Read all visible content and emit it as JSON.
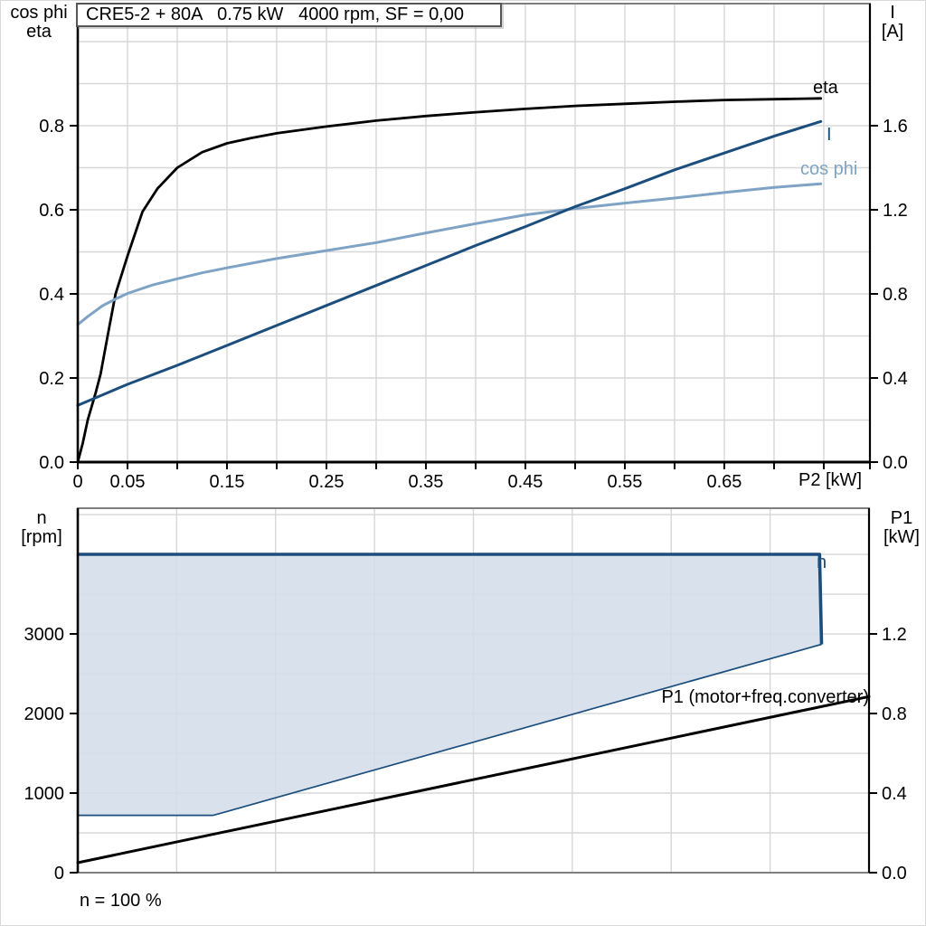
{
  "colors": {
    "curve_black": "#000000",
    "curve_dark_blue": "#1b4e7c",
    "curve_light_blue": "#7fa3c5",
    "area_fill": "#d3dde9",
    "grid": "#d7d7d7",
    "frame_grey": "#808080",
    "text": "#000000"
  },
  "top_chart": {
    "title": "CRE5-2 + 80A   0.75 kW   4000 rpm, SF = 0,00",
    "left_axis_line1": "cos phi",
    "left_axis_line2": "eta",
    "right_axis_line1": "I",
    "right_axis_line2": "[A]",
    "x_axis_label": "P2 [kW]",
    "curve_labels": {
      "eta": "eta",
      "current": "I",
      "cos_phi": "cos phi"
    }
  },
  "bottom_chart": {
    "left_axis_line1": "n",
    "left_axis_line2": "[rpm]",
    "right_axis_line1": "P1",
    "right_axis_line2": "[kW]",
    "curve_labels": {
      "n": "n",
      "p1": "P1 (motor+freq.converter)"
    },
    "footnote": "n = 100 %"
  },
  "chart_data": [
    {
      "type": "line",
      "title": "CRE5-2 + 80A   0.75 kW   4000 rpm, SF = 0,00",
      "x_axis": {
        "label": "P2 [kW]",
        "range": [
          0,
          0.7964
        ],
        "grid_step": 0.05,
        "minor_tick_step": 0.05,
        "minor_tick_max": 0.75,
        "ticks": [
          [
            0,
            "0"
          ],
          [
            0.05,
            "0.05"
          ],
          [
            0.15,
            "0.15"
          ],
          [
            0.25,
            "0.25"
          ],
          [
            0.35,
            "0.35"
          ],
          [
            0.45,
            "0.45"
          ],
          [
            0.55,
            "0.55"
          ],
          [
            0.65,
            "0.65"
          ]
        ]
      },
      "left_axis": {
        "label": "cos phi / eta",
        "range": [
          0,
          1.0903
        ],
        "grid_step": 0.1,
        "ticks": [
          [
            0,
            "0.0"
          ],
          [
            0.2,
            "0.2"
          ],
          [
            0.4,
            "0.4"
          ],
          [
            0.6,
            "0.6"
          ],
          [
            0.8,
            "0.8"
          ]
        ]
      },
      "right_axis": {
        "label": "I [A]",
        "range": [
          0,
          2.1806
        ],
        "ticks": [
          [
            0,
            "0.0"
          ],
          [
            0.4,
            "0.4"
          ],
          [
            0.8,
            "0.8"
          ],
          [
            1.2,
            "1.2"
          ],
          [
            1.6,
            "1.6"
          ]
        ]
      },
      "series": [
        {
          "name": "eta",
          "axis": "left",
          "color": "#000000",
          "width": 2.8,
          "points": [
            [
              0,
              0
            ],
            [
              0.005,
              0.045
            ],
            [
              0.01,
              0.1
            ],
            [
              0.018,
              0.165
            ],
            [
              0.023,
              0.21
            ],
            [
              0.03,
              0.3
            ],
            [
              0.038,
              0.4
            ],
            [
              0.05,
              0.49
            ],
            [
              0.065,
              0.595
            ],
            [
              0.08,
              0.65
            ],
            [
              0.1,
              0.7
            ],
            [
              0.125,
              0.737
            ],
            [
              0.15,
              0.758
            ],
            [
              0.175,
              0.771
            ],
            [
              0.2,
              0.782
            ],
            [
              0.25,
              0.798
            ],
            [
              0.3,
              0.812
            ],
            [
              0.35,
              0.823
            ],
            [
              0.4,
              0.832
            ],
            [
              0.45,
              0.84
            ],
            [
              0.5,
              0.847
            ],
            [
              0.55,
              0.852
            ],
            [
              0.6,
              0.857
            ],
            [
              0.65,
              0.861
            ],
            [
              0.7,
              0.863
            ],
            [
              0.747,
              0.865
            ]
          ]
        },
        {
          "name": "cos-phi",
          "axis": "left",
          "color": "#7fa3c5",
          "width": 3,
          "points": [
            [
              0,
              0.327
            ],
            [
              0.01,
              0.346
            ],
            [
              0.025,
              0.372
            ],
            [
              0.04,
              0.39
            ],
            [
              0.05,
              0.401
            ],
            [
              0.075,
              0.421
            ],
            [
              0.1,
              0.436
            ],
            [
              0.125,
              0.45
            ],
            [
              0.15,
              0.462
            ],
            [
              0.2,
              0.484
            ],
            [
              0.25,
              0.503
            ],
            [
              0.3,
              0.522
            ],
            [
              0.35,
              0.545
            ],
            [
              0.4,
              0.567
            ],
            [
              0.45,
              0.588
            ],
            [
              0.5,
              0.603
            ],
            [
              0.55,
              0.616
            ],
            [
              0.6,
              0.628
            ],
            [
              0.65,
              0.641
            ],
            [
              0.7,
              0.653
            ],
            [
              0.747,
              0.662
            ]
          ]
        },
        {
          "name": "current-I",
          "axis": "right",
          "color": "#1b4e7c",
          "width": 3,
          "points": [
            [
              0,
              0.27
            ],
            [
              0.05,
              0.37
            ],
            [
              0.1,
              0.46
            ],
            [
              0.15,
              0.555
            ],
            [
              0.2,
              0.65
            ],
            [
              0.25,
              0.745
            ],
            [
              0.3,
              0.84
            ],
            [
              0.35,
              0.935
            ],
            [
              0.4,
              1.03
            ],
            [
              0.45,
              1.12
            ],
            [
              0.5,
              1.215
            ],
            [
              0.55,
              1.3
            ],
            [
              0.6,
              1.39
            ],
            [
              0.65,
              1.47
            ],
            [
              0.7,
              1.55
            ],
            [
              0.747,
              1.62
            ]
          ]
        }
      ]
    },
    {
      "type": "area",
      "title": "",
      "x_axis": {
        "label": "n = 100 %",
        "range": [
          0,
          0.8
        ],
        "grid_step": 0.1,
        "ticks": []
      },
      "left_axis": {
        "label": "n [rpm]",
        "range": [
          0,
          4580
        ],
        "grid_step": 500,
        "ticks": [
          [
            0,
            "0"
          ],
          [
            1000,
            "1000"
          ],
          [
            2000,
            "2000"
          ],
          [
            3000,
            "3000"
          ]
        ]
      },
      "right_axis": {
        "label": "P1 [kW]",
        "range": [
          0,
          1.832
        ],
        "ticks": [
          [
            0,
            "0.0"
          ],
          [
            0.4,
            "0.4"
          ],
          [
            0.8,
            "0.8"
          ],
          [
            1.2,
            "1.2"
          ]
        ]
      },
      "area": {
        "name": "speed-operating-range",
        "axis": "left",
        "fill": "#d3dde9",
        "stroke": "#1b4e7c",
        "points": [
          [
            0,
            4000
          ],
          [
            0.75,
            4000
          ],
          [
            0.752,
            2870
          ],
          [
            0.137,
            720
          ],
          [
            0,
            720
          ]
        ],
        "thick_segment": [
          [
            0,
            4000
          ],
          [
            0.75,
            4000
          ],
          [
            0.752,
            2870
          ]
        ],
        "thin_segment": [
          [
            0.752,
            2870
          ],
          [
            0.137,
            720
          ],
          [
            0,
            720
          ]
        ]
      },
      "series": [
        {
          "name": "p1-motor-freq-converter",
          "axis": "right",
          "color": "#000000",
          "width": 3,
          "points": [
            [
              0,
              0.05
            ],
            [
              0.8,
              0.885
            ]
          ]
        }
      ]
    }
  ]
}
